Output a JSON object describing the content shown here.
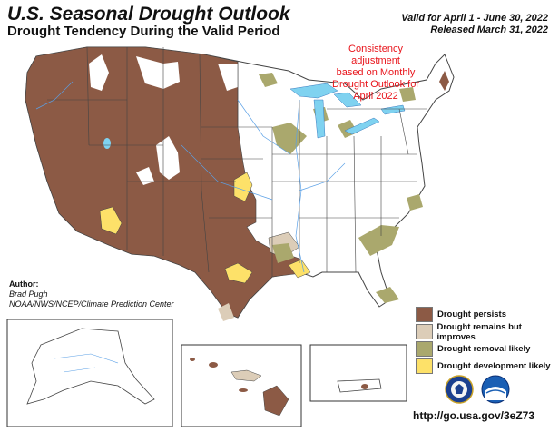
{
  "header": {
    "title": "U.S. Seasonal Drought Outlook",
    "subtitle": "Drought Tendency During the Valid Period",
    "valid_line": "Valid for April 1 - June 30, 2022",
    "released_line": "Released March 31, 2022"
  },
  "annotation": {
    "line1": "Consistency adjustment",
    "line2": "based on Monthly",
    "line3": "Drought Outlook for",
    "line4": "April 2022"
  },
  "author": {
    "label": "Author:",
    "name": "Brad Pugh",
    "org": "NOAA/NWS/NCEP/Climate Prediction Center"
  },
  "legend": {
    "items": [
      {
        "label": "Drought persists",
        "color": "#8c5a45"
      },
      {
        "label": "Drought remains but improves",
        "color": "#dccdb8"
      },
      {
        "label": "Drought removal likely",
        "color": "#aaa86d"
      },
      {
        "label": "Drought development likely",
        "color": "#fde169"
      }
    ]
  },
  "colors": {
    "persists": "#8c5a45",
    "improves": "#dccdb8",
    "removal": "#aaa86d",
    "development": "#fde169",
    "water": "#7fd2f0",
    "rivers": "#5aa0e6",
    "borders": "#444444"
  },
  "footer": {
    "url": "http://go.usa.gov/3eZ73"
  }
}
